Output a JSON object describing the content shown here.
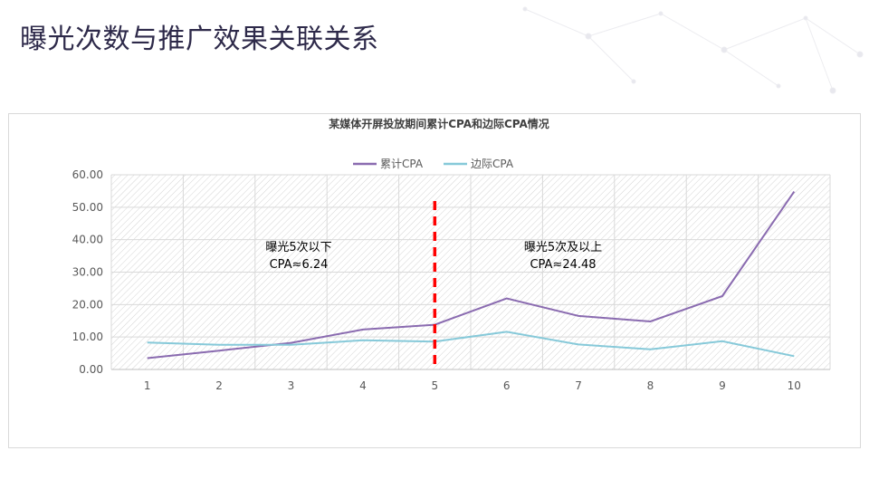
{
  "slide": {
    "title": "曝光次数与推广效果关联关系"
  },
  "colors": {
    "cumulative": "#8a6bb0",
    "marginal": "#86c9d9",
    "divider": "#ff0000"
  },
  "chart_data": {
    "type": "line",
    "title": "某媒体开屏投放期间累计CPA和边际CPA情况",
    "xlabel": "",
    "ylabel": "",
    "categories": [
      "1",
      "2",
      "3",
      "4",
      "5",
      "6",
      "7",
      "8",
      "9",
      "10"
    ],
    "ylim": [
      0,
      60
    ],
    "yticks": [
      "0.00",
      "10.00",
      "20.00",
      "30.00",
      "40.00",
      "50.00",
      "60.00"
    ],
    "legend_position": "top",
    "series": [
      {
        "name": "累计CPA",
        "values": [
          3.5,
          5.8,
          8.2,
          12.3,
          13.8,
          21.9,
          16.5,
          14.8,
          22.6,
          54.8
        ]
      },
      {
        "name": "边际CPA",
        "values": [
          8.3,
          7.6,
          7.6,
          9.0,
          8.6,
          11.6,
          7.7,
          6.2,
          8.7,
          4.1
        ]
      }
    ],
    "divider_at": "5",
    "annotations": [
      {
        "line1": "曝光5次以下",
        "line2": "CPA≈6.24"
      },
      {
        "line1": "曝光5次及以上",
        "line2": "CPA≈24.48"
      }
    ]
  }
}
